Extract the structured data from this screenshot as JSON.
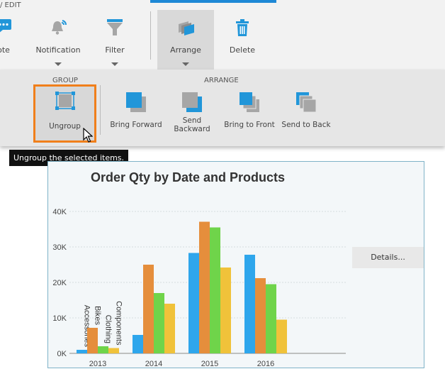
{
  "ribbon": {
    "tab_label": "/ EDIT",
    "buttons": {
      "note": "ote",
      "notification": "Notification",
      "filter": "Filter",
      "arrange": "Arrange",
      "delete": "Delete"
    }
  },
  "sub_ribbon": {
    "group_label": "GROUP",
    "arrange_label": "ARRANGE",
    "ungroup": "Ungroup",
    "bring_forward": "Bring Forward",
    "send_backward_line1": "Send",
    "send_backward_line2": "Backward",
    "bring_to_front": "Bring to Front",
    "send_to_back": "Send to Back"
  },
  "tooltip": "Ungroup the selected items.",
  "details_button": "Details...",
  "colors": {
    "accent": "#1e88d6",
    "highlight": "#f07f1b",
    "icon_blue": "#2196d9",
    "icon_gray": "#a6a6a6"
  },
  "chart_data": {
    "type": "bar",
    "title": "Order Qty by Date and Products",
    "categories": [
      "2013",
      "2014",
      "2015",
      "2016"
    ],
    "series": [
      {
        "name": "Accessories",
        "color": "#2ea6ec",
        "values": [
          1000,
          5200,
          28300,
          27800
        ]
      },
      {
        "name": "Bikes",
        "color": "#e58e3c",
        "values": [
          7200,
          25000,
          37100,
          21200
        ]
      },
      {
        "name": "Clothing",
        "color": "#6fd44a",
        "values": [
          2000,
          17000,
          35500,
          19500
        ]
      },
      {
        "name": "Components",
        "color": "#f0c23a",
        "values": [
          1500,
          14000,
          24200,
          9500
        ]
      }
    ],
    "ylim": [
      0,
      40000
    ],
    "yticks": [
      "0K",
      "10K",
      "20K",
      "30K",
      "40K"
    ],
    "grid": true
  }
}
